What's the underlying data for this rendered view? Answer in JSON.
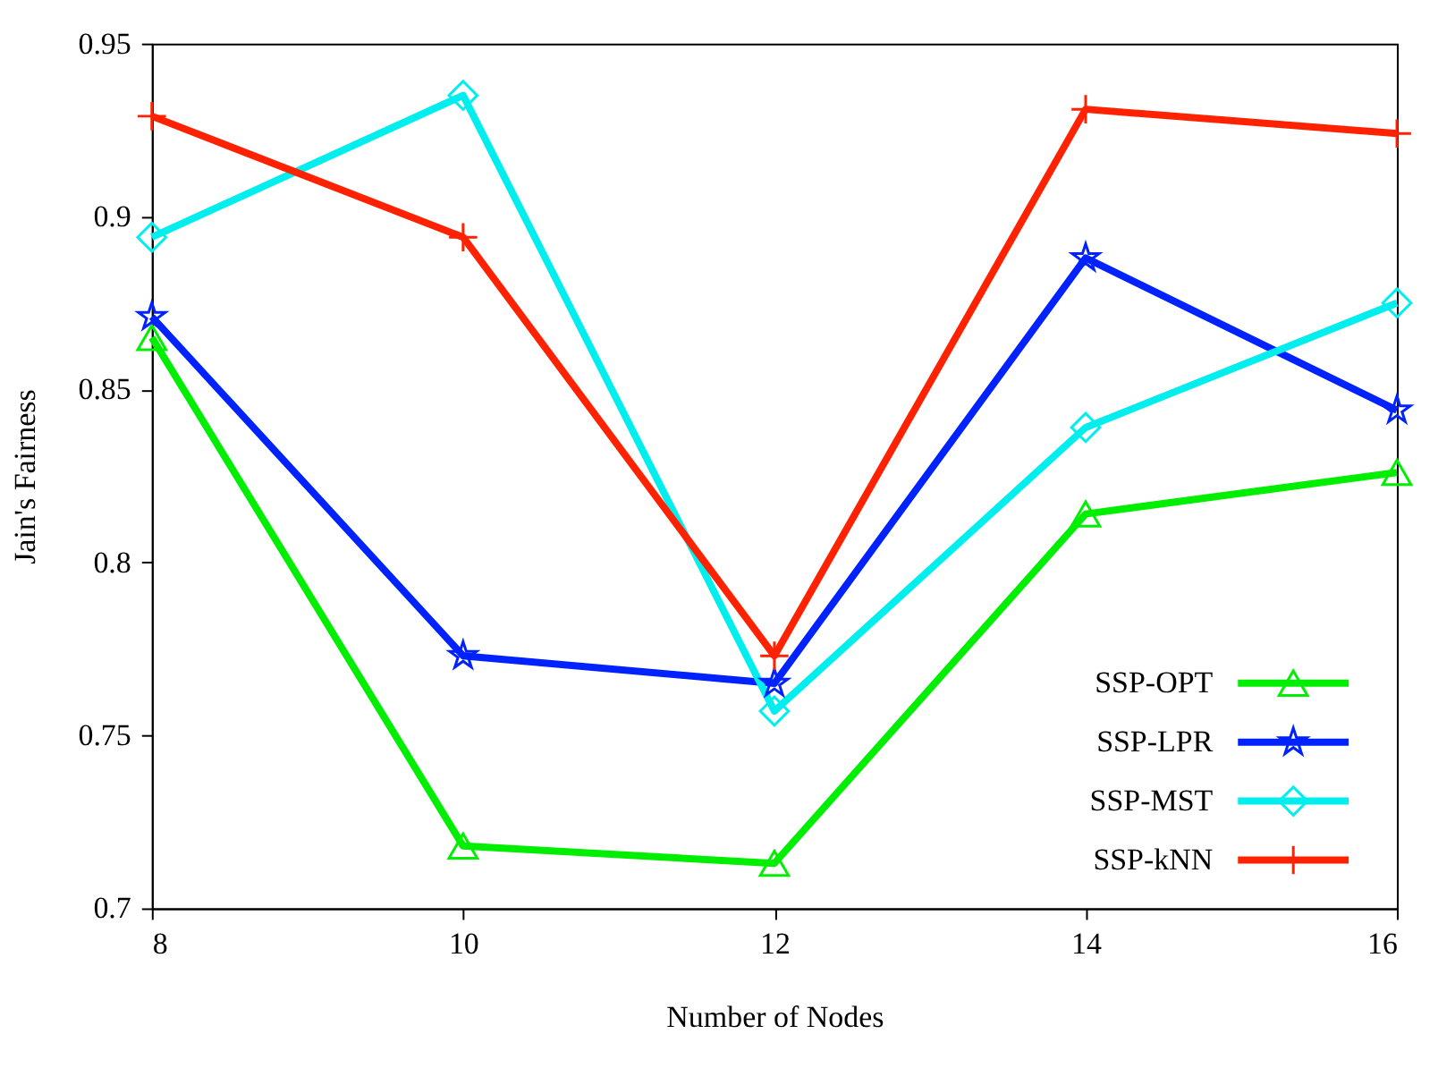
{
  "chart_data": {
    "type": "line",
    "xlabel": "Number of Nodes",
    "ylabel": "Jain's Fairness",
    "x": [
      8,
      10,
      12,
      14,
      16
    ],
    "series": [
      {
        "name": "SSP-OPT",
        "color": "#00ee00",
        "marker": "triangle",
        "values": [
          0.865,
          0.718,
          0.713,
          0.814,
          0.826
        ]
      },
      {
        "name": "SSP-LPR",
        "color": "#0022ff",
        "marker": "star",
        "values": [
          0.871,
          0.773,
          0.765,
          0.888,
          0.844
        ]
      },
      {
        "name": "SSP-MST",
        "color": "#00eeee",
        "marker": "diamond",
        "values": [
          0.894,
          0.935,
          0.757,
          0.839,
          0.875
        ]
      },
      {
        "name": "SSP-kNN",
        "color": "#ff2200",
        "marker": "cross",
        "values": [
          0.929,
          0.894,
          0.773,
          0.931,
          0.924
        ]
      }
    ],
    "xlim": [
      8,
      16
    ],
    "xticks": [
      8,
      10,
      12,
      14,
      16
    ],
    "ylim": [
      0.7,
      0.95
    ],
    "yticks": [
      0.7,
      0.75,
      0.8,
      0.85,
      0.9,
      0.95
    ],
    "grid": false,
    "legend": "bottom right",
    "line_style": "solid"
  }
}
